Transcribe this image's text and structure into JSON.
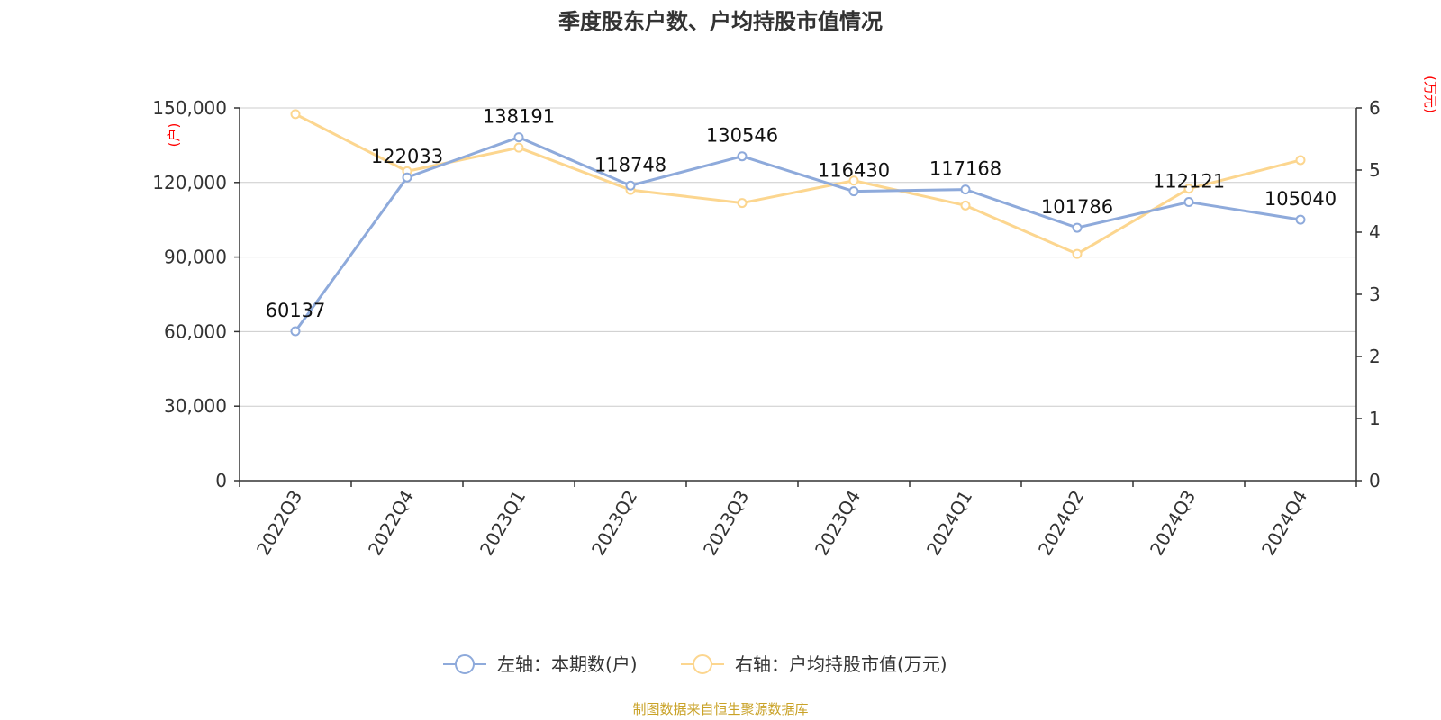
{
  "chart_data": {
    "type": "line",
    "title": "季度股东户数、户均持股市值情况",
    "categories": [
      "2022Q3",
      "2022Q4",
      "2023Q1",
      "2023Q2",
      "2023Q3",
      "2023Q4",
      "2024Q1",
      "2024Q2",
      "2024Q3",
      "2024Q4"
    ],
    "left_axis": {
      "unit": "(户)",
      "ylim": [
        0,
        150000
      ],
      "ticks": [
        "0",
        "30,000",
        "60,000",
        "90,000",
        "120,000",
        "150,000"
      ],
      "tick_values": [
        0,
        30000,
        60000,
        90000,
        120000,
        150000
      ]
    },
    "right_axis": {
      "unit": "(万元)",
      "ylim": [
        0,
        6
      ],
      "ticks": [
        "0",
        "1",
        "2",
        "3",
        "4",
        "5",
        "6"
      ],
      "tick_values": [
        0,
        1,
        2,
        3,
        4,
        5,
        6
      ]
    },
    "series": [
      {
        "name": "左轴：本期数(户)",
        "axis": "left",
        "color": "#8eaadb",
        "values": [
          60137,
          122033,
          138191,
          118748,
          130546,
          116430,
          117168,
          101786,
          112121,
          105040
        ],
        "labels": [
          "60137",
          "122033",
          "138191",
          "118748",
          "130546",
          "116430",
          "117168",
          "101786",
          "112121",
          "105040"
        ]
      },
      {
        "name": "右轴：户均持股市值(万元)",
        "axis": "right",
        "color": "#fcd68f",
        "values": [
          5.9,
          4.98,
          5.36,
          4.68,
          4.47,
          4.83,
          4.43,
          3.65,
          4.7,
          5.16
        ]
      }
    ],
    "grid": true,
    "legend_position": "bottom-center",
    "source": "制图数据来自恒生聚源数据库"
  }
}
